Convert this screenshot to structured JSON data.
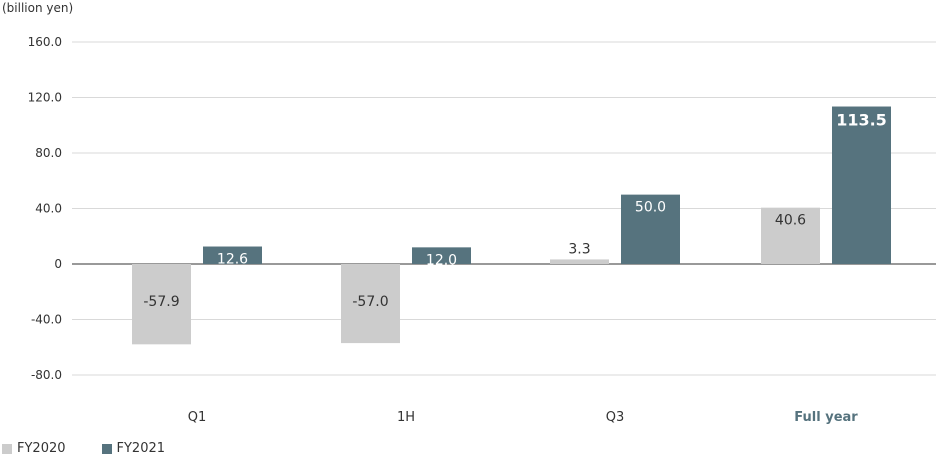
{
  "chart_data": {
    "type": "bar",
    "unit_label": "(billion yen)",
    "categories": [
      "Q1",
      "1H",
      "Q3",
      "Full year"
    ],
    "highlight_category": "Full year",
    "series": [
      {
        "name": "FY2020",
        "color": "#cccccc",
        "values": [
          -57.9,
          -57.0,
          3.3,
          40.6
        ],
        "labels": [
          "-57.9",
          "-57.0",
          "3.3",
          "40.6"
        ]
      },
      {
        "name": "FY2021",
        "color": "#56737e",
        "values": [
          12.6,
          12.0,
          50.0,
          113.5
        ],
        "labels": [
          "12.6",
          "12.0",
          "50.0",
          "113.5"
        ]
      }
    ],
    "yticks": [
      "160.0",
      "120.0",
      "80.0",
      "40.0",
      "0",
      "-40.0",
      "-80.0"
    ],
    "ylim": [
      -80,
      160
    ],
    "grid": true,
    "legend_position": "bottom-left"
  }
}
